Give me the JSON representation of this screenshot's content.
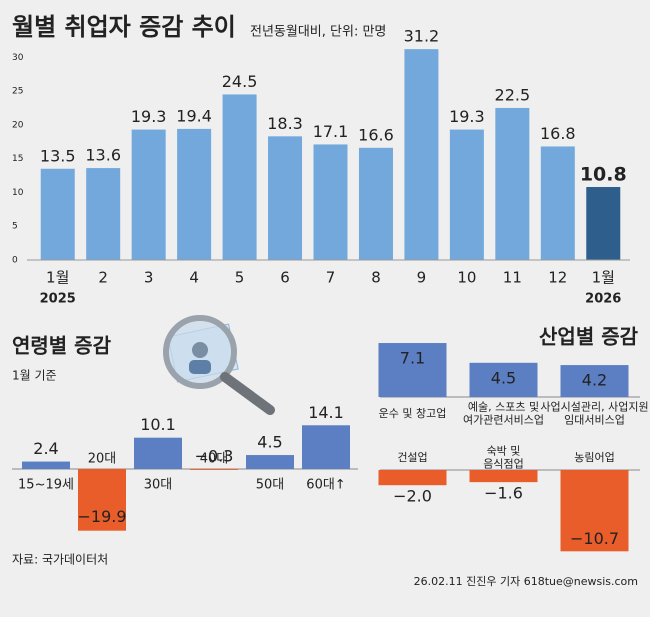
{
  "chart_data": [
    {
      "type": "bar",
      "title": "월별 취업자 증감 추이",
      "subtitle": "전년동월대비, 단위: 만명",
      "categories": [
        "1월",
        "2",
        "3",
        "4",
        "5",
        "6",
        "7",
        "8",
        "9",
        "10",
        "11",
        "12",
        "1월"
      ],
      "years": [
        "2025",
        null,
        null,
        null,
        null,
        null,
        null,
        null,
        null,
        null,
        null,
        null,
        "2026"
      ],
      "values": [
        13.5,
        13.6,
        19.3,
        19.4,
        24.5,
        18.3,
        17.1,
        16.6,
        31.2,
        19.3,
        22.5,
        16.8,
        10.8
      ],
      "colors": [
        "#72a8dc",
        "#72a8dc",
        "#72a8dc",
        "#72a8dc",
        "#72a8dc",
        "#72a8dc",
        "#72a8dc",
        "#72a8dc",
        "#72a8dc",
        "#72a8dc",
        "#72a8dc",
        "#72a8dc",
        "#2e5e8c"
      ],
      "ylim": [
        0,
        33
      ],
      "yticks": [
        0,
        5,
        10,
        15,
        20,
        25,
        30
      ],
      "grid": false
    },
    {
      "type": "bar",
      "title": "연령별 증감",
      "subtitle": "1월 기준",
      "categories": [
        "15~19세",
        "20대",
        "30대",
        "40대",
        "50대",
        "60대↑"
      ],
      "values": [
        2.4,
        -19.9,
        10.1,
        -0.3,
        4.5,
        14.1
      ],
      "value_labels": [
        "2.4",
        "−19.9",
        "10.1",
        "−0.3",
        "4.5",
        "14.1"
      ],
      "positive_color": "#5c7ec2",
      "negative_color": "#e95d2a"
    },
    {
      "type": "bar",
      "title": "산업별 증감",
      "categories": [
        "운수 및 창고업",
        "예술, 스포츠 및\n여가관련서비스업",
        "사업시설관리, 사업지원\n임대서비스업",
        "건설업",
        "숙박 및\n음식점업",
        "농림어업"
      ],
      "values": [
        7.1,
        4.5,
        4.2,
        -2.0,
        -1.6,
        -10.7
      ],
      "value_labels": [
        "7.1",
        "4.5",
        "4.2",
        "−2.0",
        "−1.6",
        "−10.7"
      ],
      "positive_color": "#5c7ec2",
      "negative_color": "#e95d2a"
    }
  ],
  "source": "자료: 국가데이터처",
  "credit": "26.02.11 진진우 기자 618tue@newsis.com"
}
